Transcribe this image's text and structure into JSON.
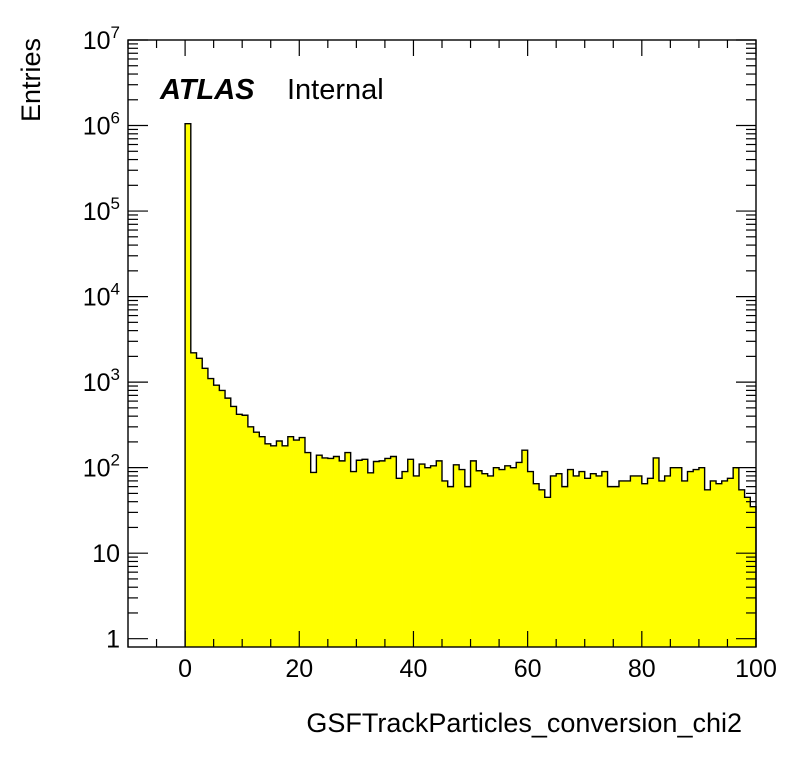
{
  "chart_data": {
    "type": "bar",
    "title": "",
    "xlabel": "GSFTrackParticles_conversion_chi2",
    "ylabel": "Entries",
    "annotation": {
      "bold": "ATLAS",
      "normal": "Internal"
    },
    "xlim": [
      -10,
      100
    ],
    "ylim": [
      0.8,
      10000000
    ],
    "yscale": "log",
    "bin_width": 1,
    "x_ticks": [
      {
        "value": 0,
        "label": "0"
      },
      {
        "value": 20,
        "label": "20"
      },
      {
        "value": 40,
        "label": "40"
      },
      {
        "value": 60,
        "label": "60"
      },
      {
        "value": 80,
        "label": "80"
      },
      {
        "value": 100,
        "label": "100"
      }
    ],
    "y_ticks": [
      {
        "value": 1,
        "label": "1",
        "exp": ""
      },
      {
        "value": 10,
        "label": "10",
        "exp": ""
      },
      {
        "value": 100,
        "label": "10",
        "exp": "2"
      },
      {
        "value": 1000,
        "label": "10",
        "exp": "3"
      },
      {
        "value": 10000,
        "label": "10",
        "exp": "4"
      },
      {
        "value": 100000,
        "label": "10",
        "exp": "5"
      },
      {
        "value": 1000000,
        "label": "10",
        "exp": "6"
      },
      {
        "value": 10000000,
        "label": "10",
        "exp": "7"
      }
    ],
    "fill_color": "#ffff00",
    "line_color": "#000000",
    "grid": false,
    "values": [
      1050000,
      2200,
      1900,
      1450,
      1100,
      920,
      800,
      650,
      520,
      420,
      410,
      300,
      260,
      230,
      190,
      180,
      205,
      180,
      230,
      210,
      225,
      150,
      88,
      140,
      130,
      128,
      135,
      120,
      150,
      90,
      122,
      125,
      87,
      118,
      120,
      128,
      135,
      75,
      90,
      125,
      80,
      110,
      100,
      105,
      120,
      70,
      60,
      108,
      95,
      60,
      120,
      92,
      85,
      80,
      100,
      95,
      105,
      100,
      115,
      160,
      90,
      65,
      55,
      45,
      80,
      85,
      60,
      95,
      80,
      90,
      75,
      85,
      80,
      90,
      60,
      60,
      70,
      70,
      80,
      80,
      65,
      75,
      130,
      70,
      80,
      100,
      100,
      70,
      90,
      95,
      100,
      55,
      70,
      65,
      70,
      75,
      100,
      55,
      45,
      35
    ]
  }
}
